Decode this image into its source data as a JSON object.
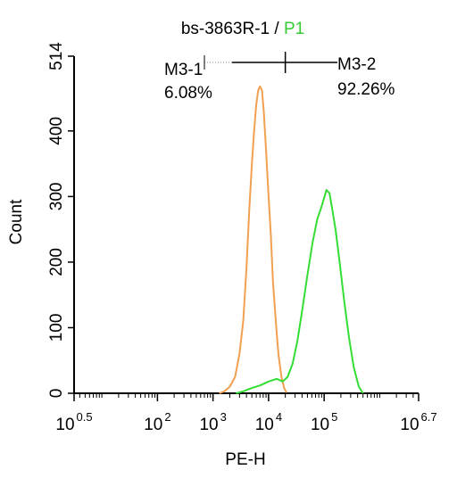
{
  "title": {
    "sample": "bs-3863R-1",
    "separator": " / ",
    "gate": "P1",
    "gate_color": "#33cc33"
  },
  "chart_data": {
    "type": "area",
    "title": "bs-3863R-1 / P1",
    "xlabel": "PE-H",
    "ylabel": "Count",
    "x_scale": "log10",
    "xlim": [
      3.1623,
      5011872.3
    ],
    "ylim": [
      0,
      514
    ],
    "x_ticks": [
      {
        "value": 3.1623,
        "base": "10",
        "exp": "0.5"
      },
      {
        "value": 100,
        "base": "10",
        "exp": "2"
      },
      {
        "value": 1000,
        "base": "10",
        "exp": "3"
      },
      {
        "value": 10000,
        "base": "10",
        "exp": "4"
      },
      {
        "value": 100000,
        "base": "10",
        "exp": "5"
      },
      {
        "value": 5011872.3,
        "base": "10",
        "exp": "6.7"
      }
    ],
    "y_ticks": [
      "0",
      "100",
      "200",
      "300",
      "400",
      "514"
    ],
    "series": [
      {
        "color": "#f0a050",
        "points": [
          [
            1300,
            0
          ],
          [
            1600,
            3
          ],
          [
            2000,
            10
          ],
          [
            2500,
            25
          ],
          [
            3000,
            60
          ],
          [
            3500,
            110
          ],
          [
            4000,
            190
          ],
          [
            4500,
            280
          ],
          [
            5000,
            350
          ],
          [
            5500,
            400
          ],
          [
            6000,
            440
          ],
          [
            6500,
            462
          ],
          [
            7000,
            468
          ],
          [
            7600,
            462
          ],
          [
            8200,
            430
          ],
          [
            9000,
            370
          ],
          [
            10000,
            300
          ],
          [
            11000,
            240
          ],
          [
            12000,
            170
          ],
          [
            13500,
            110
          ],
          [
            15000,
            60
          ],
          [
            17000,
            25
          ],
          [
            19000,
            8
          ],
          [
            21000,
            1
          ]
        ]
      },
      {
        "color": "#33dd33",
        "points": [
          [
            2600,
            0
          ],
          [
            3500,
            3
          ],
          [
            5000,
            8
          ],
          [
            7000,
            12
          ],
          [
            10000,
            18
          ],
          [
            14000,
            22
          ],
          [
            18000,
            18
          ],
          [
            22000,
            25
          ],
          [
            27000,
            45
          ],
          [
            33000,
            80
          ],
          [
            40000,
            125
          ],
          [
            50000,
            180
          ],
          [
            62000,
            230
          ],
          [
            75000,
            265
          ],
          [
            90000,
            285
          ],
          [
            100000,
            298
          ],
          [
            110000,
            310
          ],
          [
            125000,
            305
          ],
          [
            140000,
            280
          ],
          [
            160000,
            250
          ],
          [
            190000,
            200
          ],
          [
            230000,
            140
          ],
          [
            280000,
            85
          ],
          [
            340000,
            40
          ],
          [
            420000,
            10
          ],
          [
            500000,
            0
          ]
        ]
      }
    ],
    "gates": [
      {
        "name": "M3-1",
        "percent": "6.08%",
        "range": [
          700,
          20000
        ]
      },
      {
        "name": "M3-2",
        "percent": "92.26%",
        "range": [
          20000,
          5011872.3
        ]
      }
    ]
  }
}
